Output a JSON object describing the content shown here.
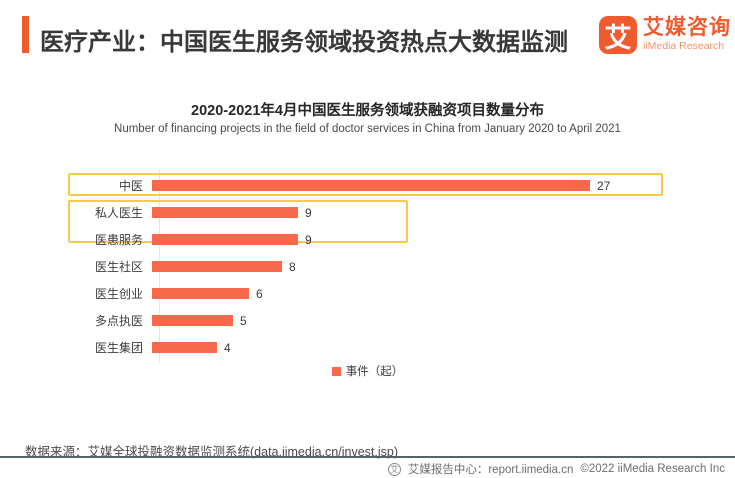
{
  "header": {
    "title": "医疗产业：中国医生服务领域投资热点大数据监测",
    "logo_glyph": "艾",
    "brand_cn": "艾媒咨询",
    "brand_en": "iiMedia Research"
  },
  "chart": {
    "title": "2020-2021年4月中国医生服务领域获融资项目数量分布",
    "subtitle": "Number of financing projects in the field of doctor services in China from January 2020 to April 2021",
    "legend_label": "事件（起）"
  },
  "chart_data": {
    "type": "bar",
    "orientation": "horizontal",
    "title": "2020-2021年4月中国医生服务领域获融资项目数量分布",
    "categories": [
      "中医",
      "私人医生",
      "医患服务",
      "医生社区",
      "医生创业",
      "多点执医",
      "医生集团"
    ],
    "values": [
      27,
      9,
      9,
      8,
      6,
      5,
      4
    ],
    "series_name": "事件（起）",
    "xlim": [
      0,
      27
    ],
    "grid": false,
    "legend_position": "bottom",
    "data_labels": true,
    "highlighted_groups": [
      {
        "rows": [
          "中医"
        ]
      },
      {
        "rows": [
          "私人医生",
          "医患服务"
        ]
      }
    ]
  },
  "footer": {
    "source": "数据来源：艾媒全球投融资数据监测系统(data.iimedia.cn/invest.jsp)",
    "report_center": "艾媒报告中心：report.iimedia.cn",
    "copyright": "©2022  iiMedia Research Inc",
    "logo_glyph": "艾"
  },
  "colors": {
    "accent": "#EE5B2E",
    "brand_en": "#F0926B",
    "bar": "#F8694A",
    "highlight_border": "#F6C94F"
  }
}
